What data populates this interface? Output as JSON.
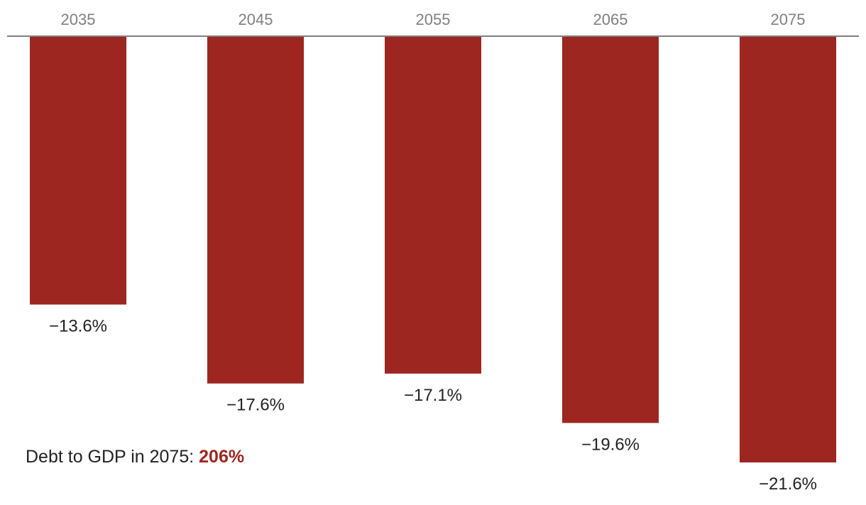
{
  "chart_data": {
    "type": "bar",
    "categories": [
      "2035",
      "2045",
      "2055",
      "2065",
      "2075"
    ],
    "values": [
      -13.6,
      -17.6,
      -17.1,
      -19.6,
      -21.6
    ],
    "data_labels": [
      "−13.6%",
      "−17.6%",
      "−17.1%",
      "−19.6%",
      "−21.6%"
    ],
    "title": "",
    "xlabel": "",
    "ylabel": "",
    "ylim": [
      -21.6,
      0
    ],
    "x_axis_position": "top",
    "grid": false,
    "legend": "none",
    "colors": {
      "bar": "#9e2620",
      "axis_line": "#808080",
      "tick_text": "#808080",
      "label_text": "#222222"
    }
  },
  "annotation": {
    "label": "Debt to GDP in 2075:",
    "value": "206%",
    "value_color": "#9e2620"
  }
}
